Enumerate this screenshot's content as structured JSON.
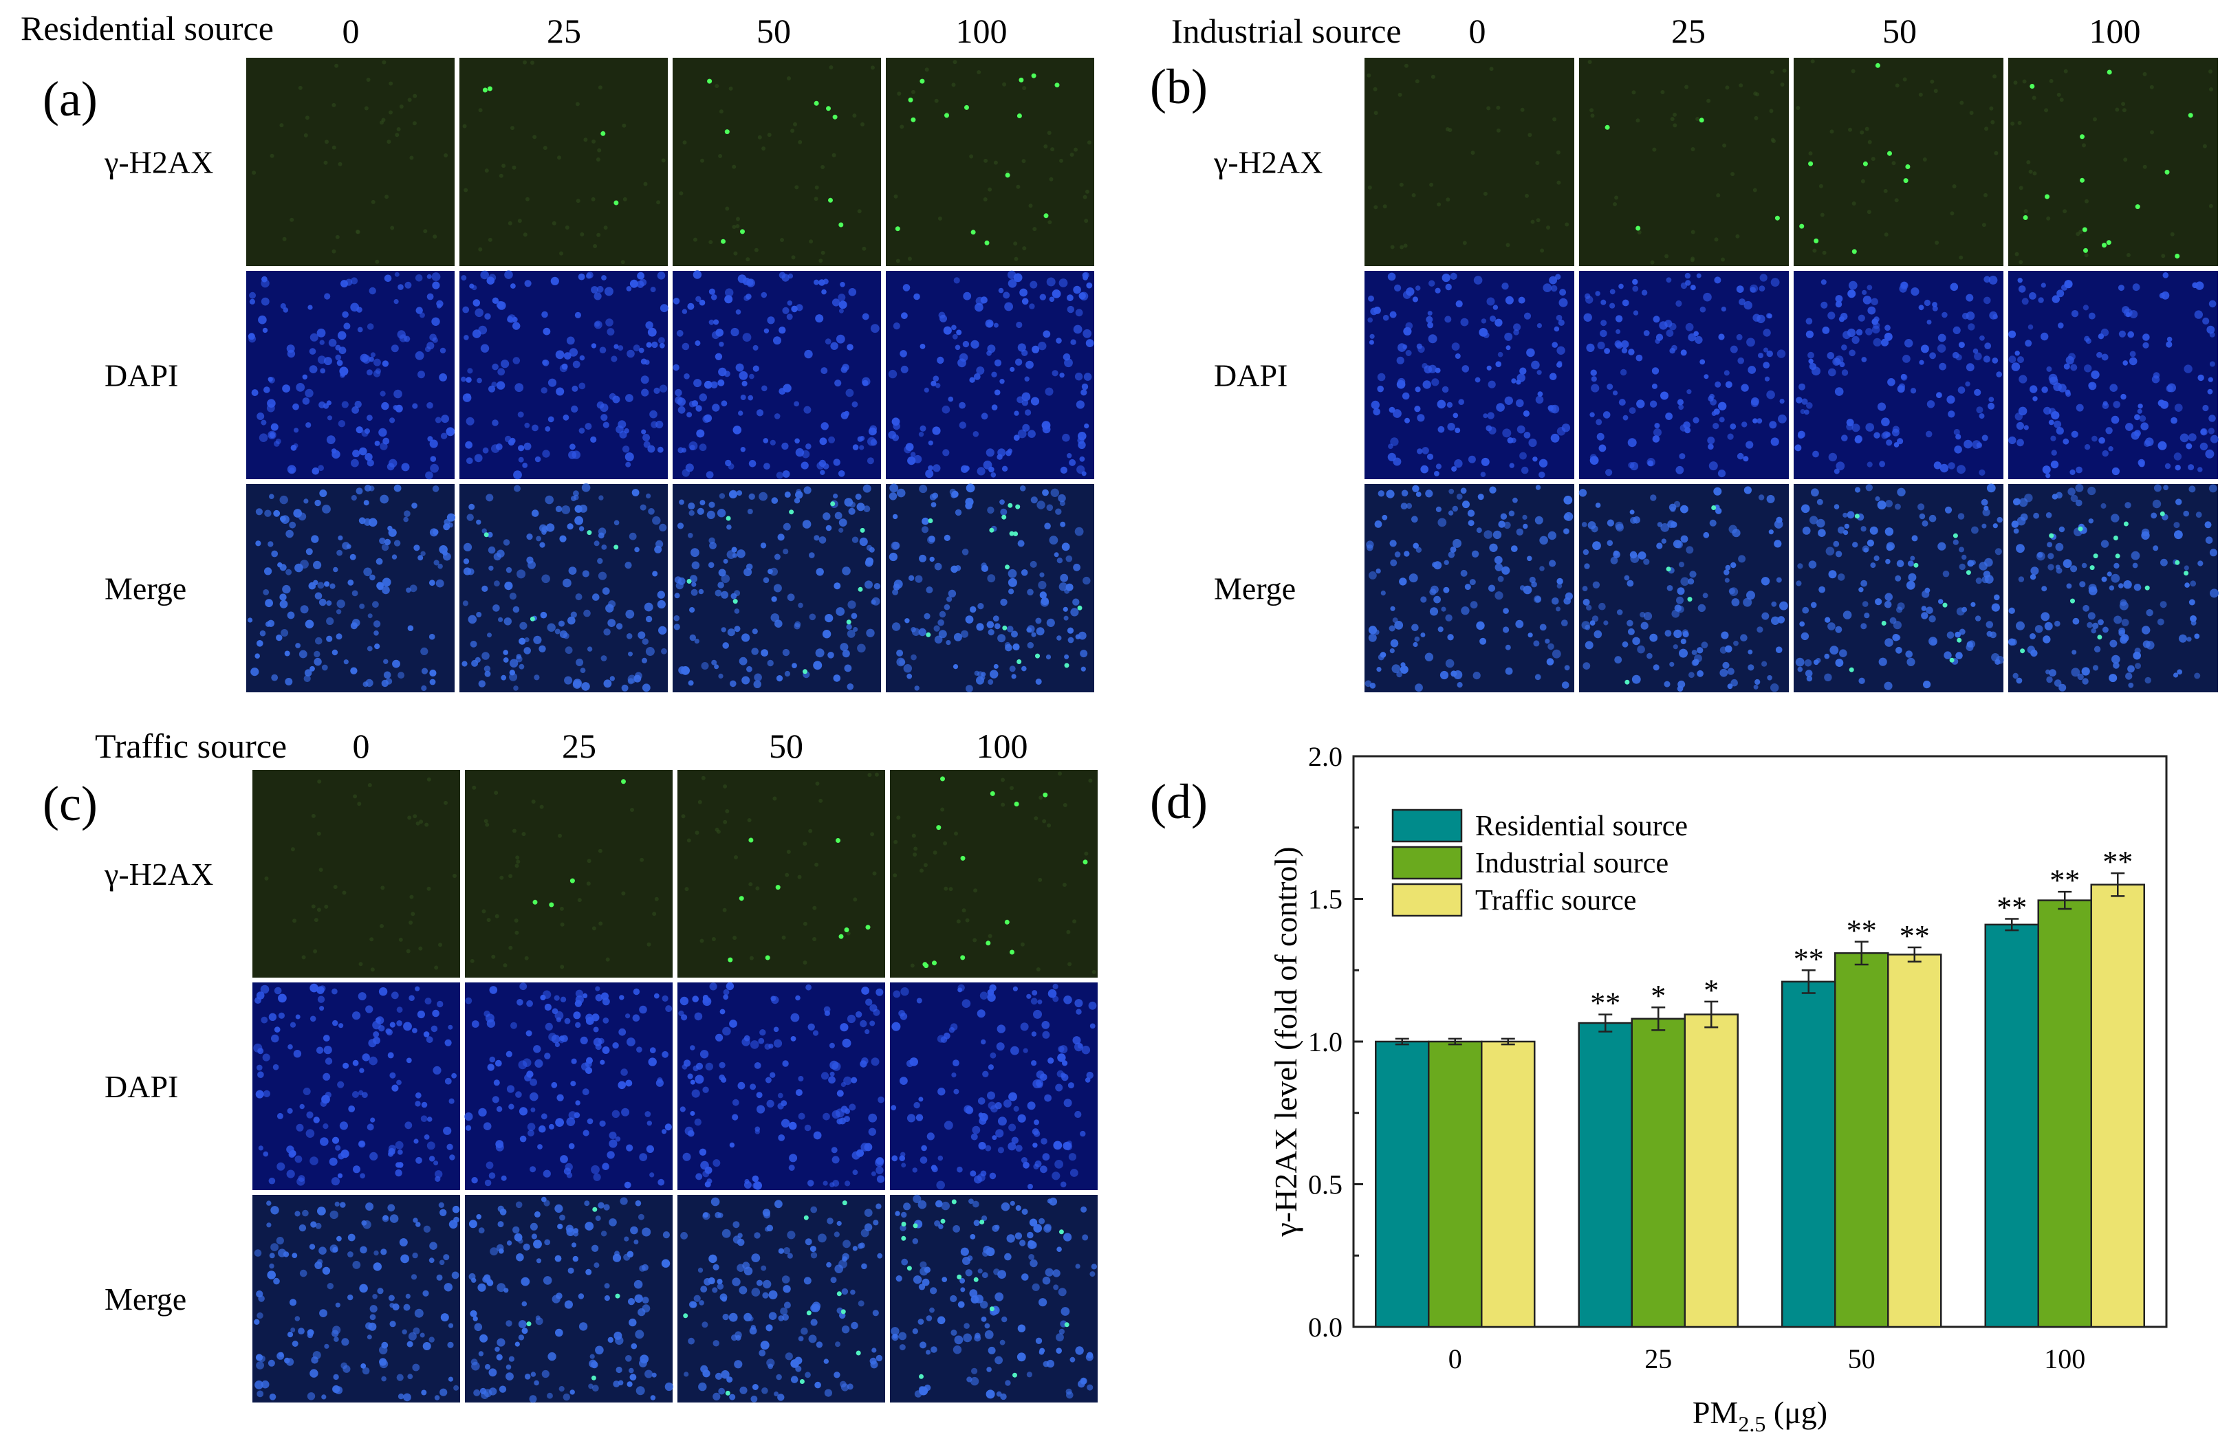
{
  "panels": [
    {
      "id": "a",
      "letter": "(a)",
      "source": "Residential source"
    },
    {
      "id": "b",
      "letter": "(b)",
      "source": "Industrial source"
    },
    {
      "id": "c",
      "letter": "(c)",
      "source": "Traffic source"
    }
  ],
  "doses": [
    "0",
    "25",
    "50",
    "100"
  ],
  "row_labels": [
    "γ-H2AX",
    "DAPI",
    "Merge"
  ],
  "micrograph_colors": {
    "gamma_h2ax_background": "#1c2810",
    "gamma_h2ax_focus": "#4dff5a",
    "dapi_background": "#06106a",
    "dapi_nucleus": "#2f57e8",
    "merge_background": "#0c1a4a",
    "merge_nucleus": "#3a6ee8",
    "merge_focus": "#50f0c0"
  },
  "chart_letter": "(d)",
  "chart_data": {
    "type": "bar",
    "categories": [
      "0",
      "25",
      "50",
      "100"
    ],
    "series": [
      {
        "name": "Residential source",
        "color": "#008b8b",
        "values": [
          1.0,
          1.065,
          1.21,
          1.41
        ],
        "errors": [
          0.01,
          0.03,
          0.04,
          0.02
        ],
        "significance": [
          "",
          "**",
          "**",
          "**"
        ]
      },
      {
        "name": "Industrial source",
        "color": "#6aaa1e",
        "values": [
          1.0,
          1.08,
          1.31,
          1.495
        ],
        "errors": [
          0.01,
          0.04,
          0.04,
          0.03
        ],
        "significance": [
          "",
          "*",
          "**",
          "**"
        ]
      },
      {
        "name": "Traffic source",
        "color": "#ece36f",
        "values": [
          1.0,
          1.095,
          1.305,
          1.55
        ],
        "errors": [
          0.01,
          0.045,
          0.025,
          0.04
        ],
        "significance": [
          "",
          "*",
          "**",
          "**"
        ]
      }
    ],
    "ylim": [
      0.0,
      2.0
    ],
    "yticks": [
      "0.0",
      "0.5",
      "1.0",
      "1.5",
      "2.0"
    ],
    "ylabel": "γ-H2AX level (fold of control)",
    "xlabel_main": "PM",
    "xlabel_sub": "2.5",
    "xlabel_unit": " (μg)",
    "legend_position": "top-left",
    "grid": false
  }
}
